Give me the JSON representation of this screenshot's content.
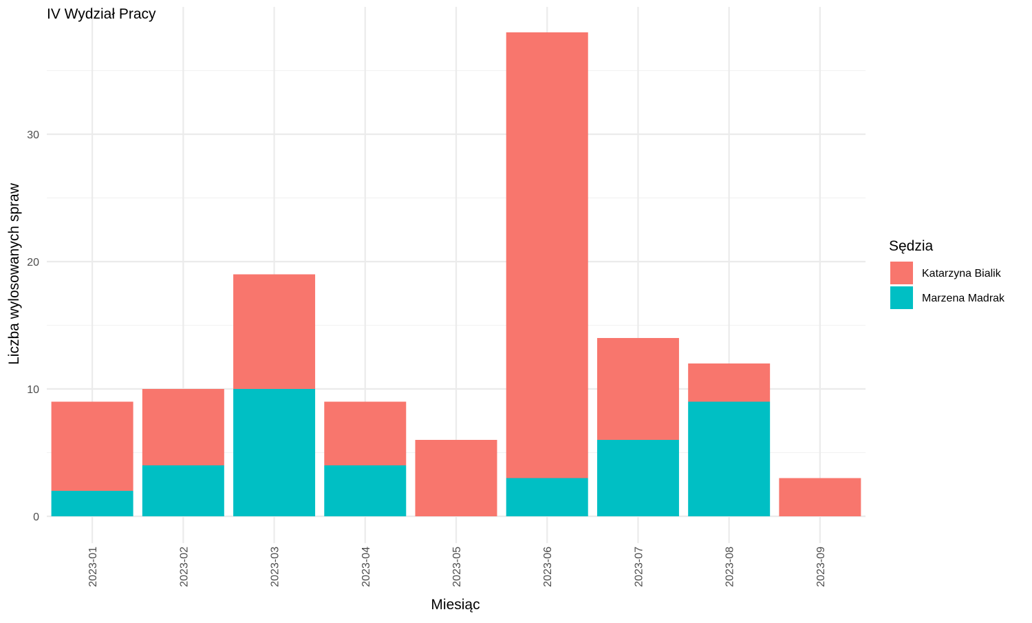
{
  "chart_data": {
    "type": "bar",
    "stacked": true,
    "title": "IV Wydział Pracy",
    "xlabel": "Miesiąc",
    "ylabel": "Liczba wylosowanych spraw",
    "categories": [
      "2023-01",
      "2023-02",
      "2023-03",
      "2023-04",
      "2023-05",
      "2023-06",
      "2023-07",
      "2023-08",
      "2023-09"
    ],
    "series": [
      {
        "name": "Marzena Madrak",
        "color": "#00BFC4",
        "values": [
          2,
          4,
          10,
          4,
          0,
          3,
          6,
          9,
          0
        ]
      },
      {
        "name": "Katarzyna Bialik",
        "color": "#F8766D",
        "values": [
          7,
          6,
          9,
          5,
          6,
          35,
          8,
          3,
          3
        ]
      }
    ],
    "ylim": [
      0,
      38
    ],
    "yticks": [
      0,
      10,
      20,
      30
    ],
    "grid": true,
    "legend": {
      "title": "Sędzia",
      "position": "right",
      "order": [
        "Katarzyna Bialik",
        "Marzena Madrak"
      ]
    }
  }
}
